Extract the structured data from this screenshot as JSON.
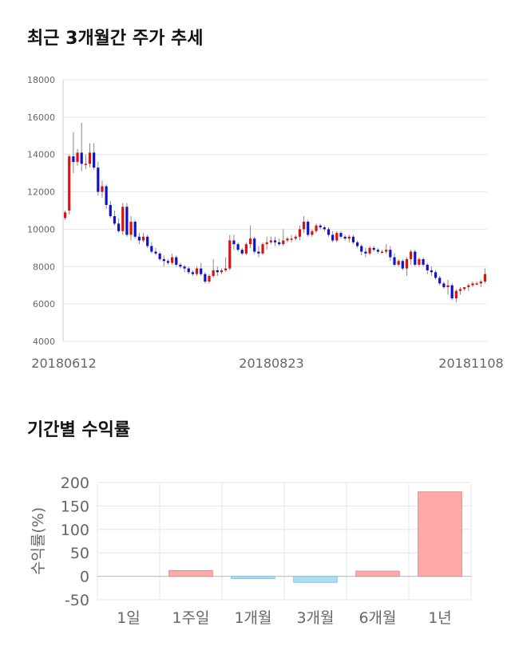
{
  "titles": {
    "price_trend": "최근 3개월간 주가 추세",
    "period_returns": "기간별 수익률"
  },
  "colors": {
    "up": "#dd1111",
    "down": "#1111cc",
    "return_positive": "#ffaaaa",
    "return_negative": "#aadff0",
    "grid": "#e4e4e4"
  },
  "chart_data": [
    {
      "type": "candlestick",
      "title": "최근 3개월간 주가 추세",
      "ylim": [
        4000,
        18000
      ],
      "yticks": [
        4000,
        6000,
        8000,
        10000,
        12000,
        14000,
        16000,
        18000
      ],
      "x_tick_labels": [
        "20180612",
        "20180823",
        "20181108"
      ],
      "grid": true,
      "candles": [
        [
          10600,
          11000,
          10500,
          10900
        ],
        [
          11000,
          14000,
          10800,
          13900
        ],
        [
          13900,
          15200,
          13000,
          13600
        ],
        [
          13600,
          14300,
          13400,
          14100
        ],
        [
          14100,
          15700,
          13100,
          13500
        ],
        [
          13500,
          14000,
          13200,
          13500
        ],
        [
          13500,
          14600,
          13300,
          14100
        ],
        [
          14100,
          14600,
          13200,
          13300
        ],
        [
          13300,
          13600,
          11800,
          12000
        ],
        [
          12000,
          12600,
          11700,
          12300
        ],
        [
          12300,
          12400,
          11100,
          11300
        ],
        [
          11300,
          11500,
          10600,
          10700
        ],
        [
          10700,
          11000,
          10200,
          10300
        ],
        [
          10300,
          10600,
          9800,
          9900
        ],
        [
          9900,
          11400,
          9700,
          11200
        ],
        [
          11200,
          11400,
          9600,
          9700
        ],
        [
          9700,
          10700,
          9400,
          10400
        ],
        [
          10400,
          10500,
          9500,
          9600
        ],
        [
          9600,
          9800,
          9200,
          9400
        ],
        [
          9400,
          9800,
          9300,
          9600
        ],
        [
          9600,
          9700,
          9000,
          9100
        ],
        [
          9100,
          9300,
          8700,
          8800
        ],
        [
          8800,
          9000,
          8600,
          8700
        ],
        [
          8700,
          8800,
          8300,
          8400
        ],
        [
          8400,
          8600,
          8000,
          8300
        ],
        [
          8300,
          8400,
          8100,
          8200
        ],
        [
          8200,
          8700,
          8100,
          8500
        ],
        [
          8500,
          8600,
          8000,
          8100
        ],
        [
          8100,
          8200,
          7900,
          8000
        ],
        [
          8000,
          8100,
          7700,
          7900
        ],
        [
          7900,
          8000,
          7600,
          7700
        ],
        [
          7700,
          7800,
          7500,
          7600
        ],
        [
          7600,
          8000,
          7500,
          7900
        ],
        [
          7900,
          8200,
          7500,
          7600
        ],
        [
          7600,
          7700,
          7100,
          7200
        ],
        [
          7200,
          7600,
          7100,
          7500
        ],
        [
          7500,
          8400,
          7400,
          7800
        ],
        [
          7800,
          8000,
          7500,
          7700
        ],
        [
          7700,
          7900,
          7600,
          7800
        ],
        [
          7800,
          8500,
          7700,
          7900
        ],
        [
          7900,
          9700,
          7800,
          9400
        ],
        [
          9400,
          9700,
          8900,
          9200
        ],
        [
          9200,
          9300,
          8800,
          8900
        ],
        [
          8900,
          9000,
          8600,
          8700
        ],
        [
          8700,
          9300,
          8600,
          9200
        ],
        [
          9200,
          10200,
          9000,
          9500
        ],
        [
          9500,
          9600,
          8700,
          8800
        ],
        [
          8800,
          9100,
          8500,
          8700
        ],
        [
          8700,
          9300,
          8600,
          9200
        ],
        [
          9200,
          9600,
          8900,
          9300
        ],
        [
          9300,
          9600,
          9200,
          9400
        ],
        [
          9400,
          9600,
          9100,
          9300
        ],
        [
          9300,
          9500,
          9100,
          9200
        ],
        [
          9200,
          10000,
          9100,
          9400
        ],
        [
          9400,
          9600,
          9300,
          9500
        ],
        [
          9500,
          9700,
          9300,
          9500
        ],
        [
          9500,
          9700,
          9400,
          9600
        ],
        [
          9600,
          10200,
          9400,
          10000
        ],
        [
          10000,
          10700,
          9800,
          10400
        ],
        [
          10400,
          10500,
          9600,
          9700
        ],
        [
          9700,
          10000,
          9600,
          9900
        ],
        [
          9900,
          10300,
          9800,
          10200
        ],
        [
          10200,
          10300,
          10000,
          10100
        ],
        [
          10100,
          10200,
          9900,
          10000
        ],
        [
          10000,
          10100,
          9600,
          9700
        ],
        [
          9700,
          9900,
          9300,
          9400
        ],
        [
          9400,
          9900,
          9300,
          9800
        ],
        [
          9800,
          9900,
          9500,
          9600
        ],
        [
          9600,
          9700,
          9400,
          9500
        ],
        [
          9500,
          9700,
          9300,
          9600
        ],
        [
          9600,
          9700,
          9200,
          9300
        ],
        [
          9300,
          9400,
          9000,
          9100
        ],
        [
          9100,
          9200,
          8600,
          8800
        ],
        [
          8800,
          9000,
          8500,
          8700
        ],
        [
          8700,
          9100,
          8600,
          9000
        ],
        [
          9000,
          9100,
          8800,
          8900
        ],
        [
          8900,
          9000,
          8700,
          8800
        ],
        [
          8800,
          8900,
          8700,
          8800
        ],
        [
          8800,
          9200,
          8700,
          8900
        ],
        [
          8900,
          9100,
          8300,
          8500
        ],
        [
          8500,
          8700,
          8000,
          8100
        ],
        [
          8100,
          8400,
          8000,
          8300
        ],
        [
          8300,
          8400,
          7800,
          7900
        ],
        [
          7900,
          8500,
          7500,
          8400
        ],
        [
          8400,
          8900,
          8100,
          8800
        ],
        [
          8800,
          8900,
          8000,
          8100
        ],
        [
          8100,
          8500,
          8000,
          8400
        ],
        [
          8400,
          8500,
          8000,
          8100
        ],
        [
          8100,
          8200,
          7600,
          7800
        ],
        [
          7800,
          8000,
          7500,
          7700
        ],
        [
          7700,
          7800,
          7300,
          7400
        ],
        [
          7400,
          7500,
          7000,
          7100
        ],
        [
          7100,
          7200,
          6800,
          6900
        ],
        [
          6900,
          7300,
          6500,
          7000
        ],
        [
          7000,
          7100,
          6200,
          6300
        ],
        [
          6300,
          6800,
          6100,
          6700
        ],
        [
          6700,
          6900,
          6500,
          6800
        ],
        [
          6800,
          6900,
          6700,
          6900
        ],
        [
          6900,
          7100,
          6700,
          7000
        ],
        [
          7000,
          7200,
          6900,
          7100
        ],
        [
          7100,
          7200,
          7000,
          7100
        ],
        [
          7100,
          7300,
          6900,
          7200
        ],
        [
          7200,
          7900,
          7100,
          7600
        ]
      ]
    },
    {
      "type": "bar",
      "title": "기간별 수익률",
      "ylabel": "수익률(%)",
      "categories": [
        "1일",
        "1주일",
        "1개월",
        "3개월",
        "6개월",
        "1년"
      ],
      "values": [
        0,
        12,
        -5,
        -13,
        11,
        180
      ],
      "ylim": [
        -50,
        200
      ],
      "yticks": [
        -50,
        0,
        50,
        100,
        150,
        200
      ],
      "grid": true
    }
  ]
}
